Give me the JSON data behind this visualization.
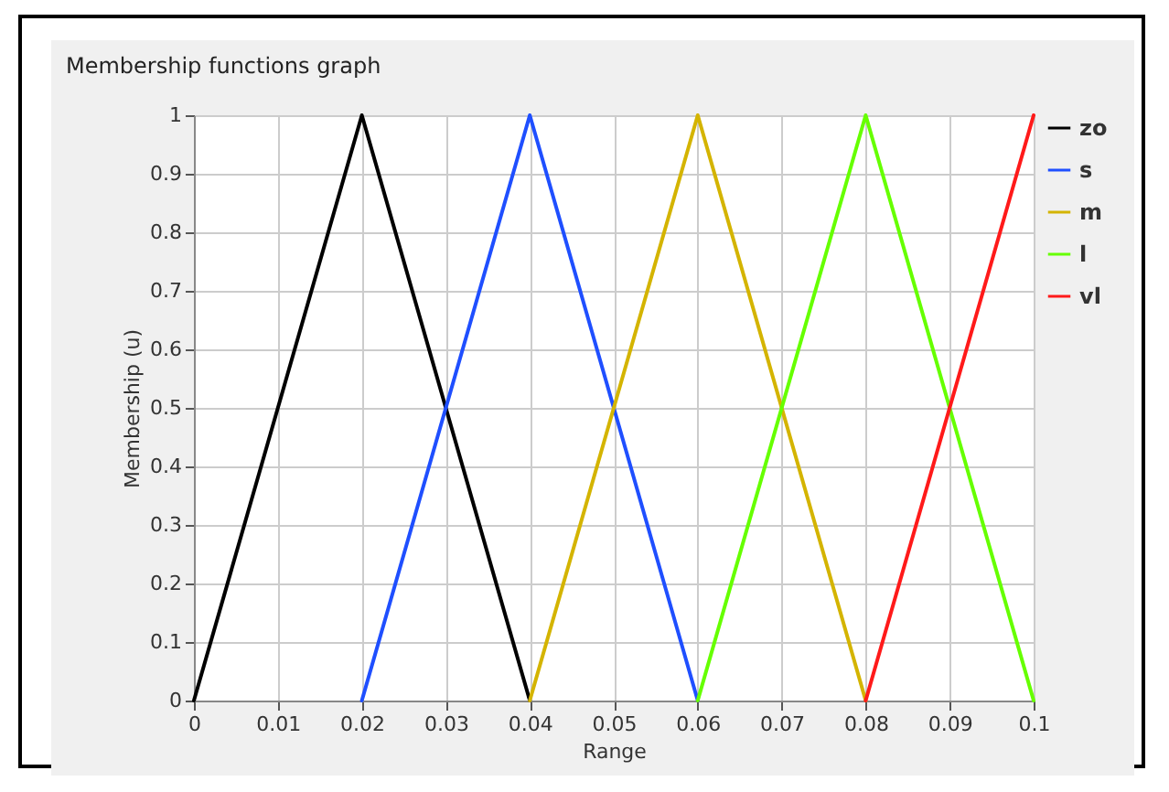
{
  "chart_data": {
    "type": "line",
    "title": "Membership functions graph",
    "xlabel": "Range",
    "ylabel": "Membership (u)",
    "xlim": [
      0,
      0.1
    ],
    "ylim": [
      0,
      1
    ],
    "xticks": [
      0,
      0.01,
      0.02,
      0.03,
      0.04,
      0.05,
      0.06,
      0.07,
      0.08,
      0.09,
      0.1
    ],
    "yticks": [
      0,
      0.1,
      0.2,
      0.3,
      0.4,
      0.5,
      0.6,
      0.7,
      0.8,
      0.9,
      1
    ],
    "grid": true,
    "legend": "right",
    "series": [
      {
        "name": "zo",
        "color": "#000000",
        "x": [
          0,
          0.02,
          0.04
        ],
        "values": [
          0,
          1,
          0
        ]
      },
      {
        "name": "s",
        "color": "#1f4fff",
        "x": [
          0.02,
          0.04,
          0.06
        ],
        "values": [
          0,
          1,
          0
        ]
      },
      {
        "name": "m",
        "color": "#d4b400",
        "x": [
          0.04,
          0.06,
          0.08
        ],
        "values": [
          0,
          1,
          0
        ]
      },
      {
        "name": "l",
        "color": "#66ff00",
        "x": [
          0.06,
          0.08,
          0.1
        ],
        "values": [
          0,
          1,
          0
        ]
      },
      {
        "name": "vl",
        "color": "#ff1a1a",
        "x": [
          0.08,
          0.1
        ],
        "values": [
          0,
          1
        ]
      }
    ]
  }
}
